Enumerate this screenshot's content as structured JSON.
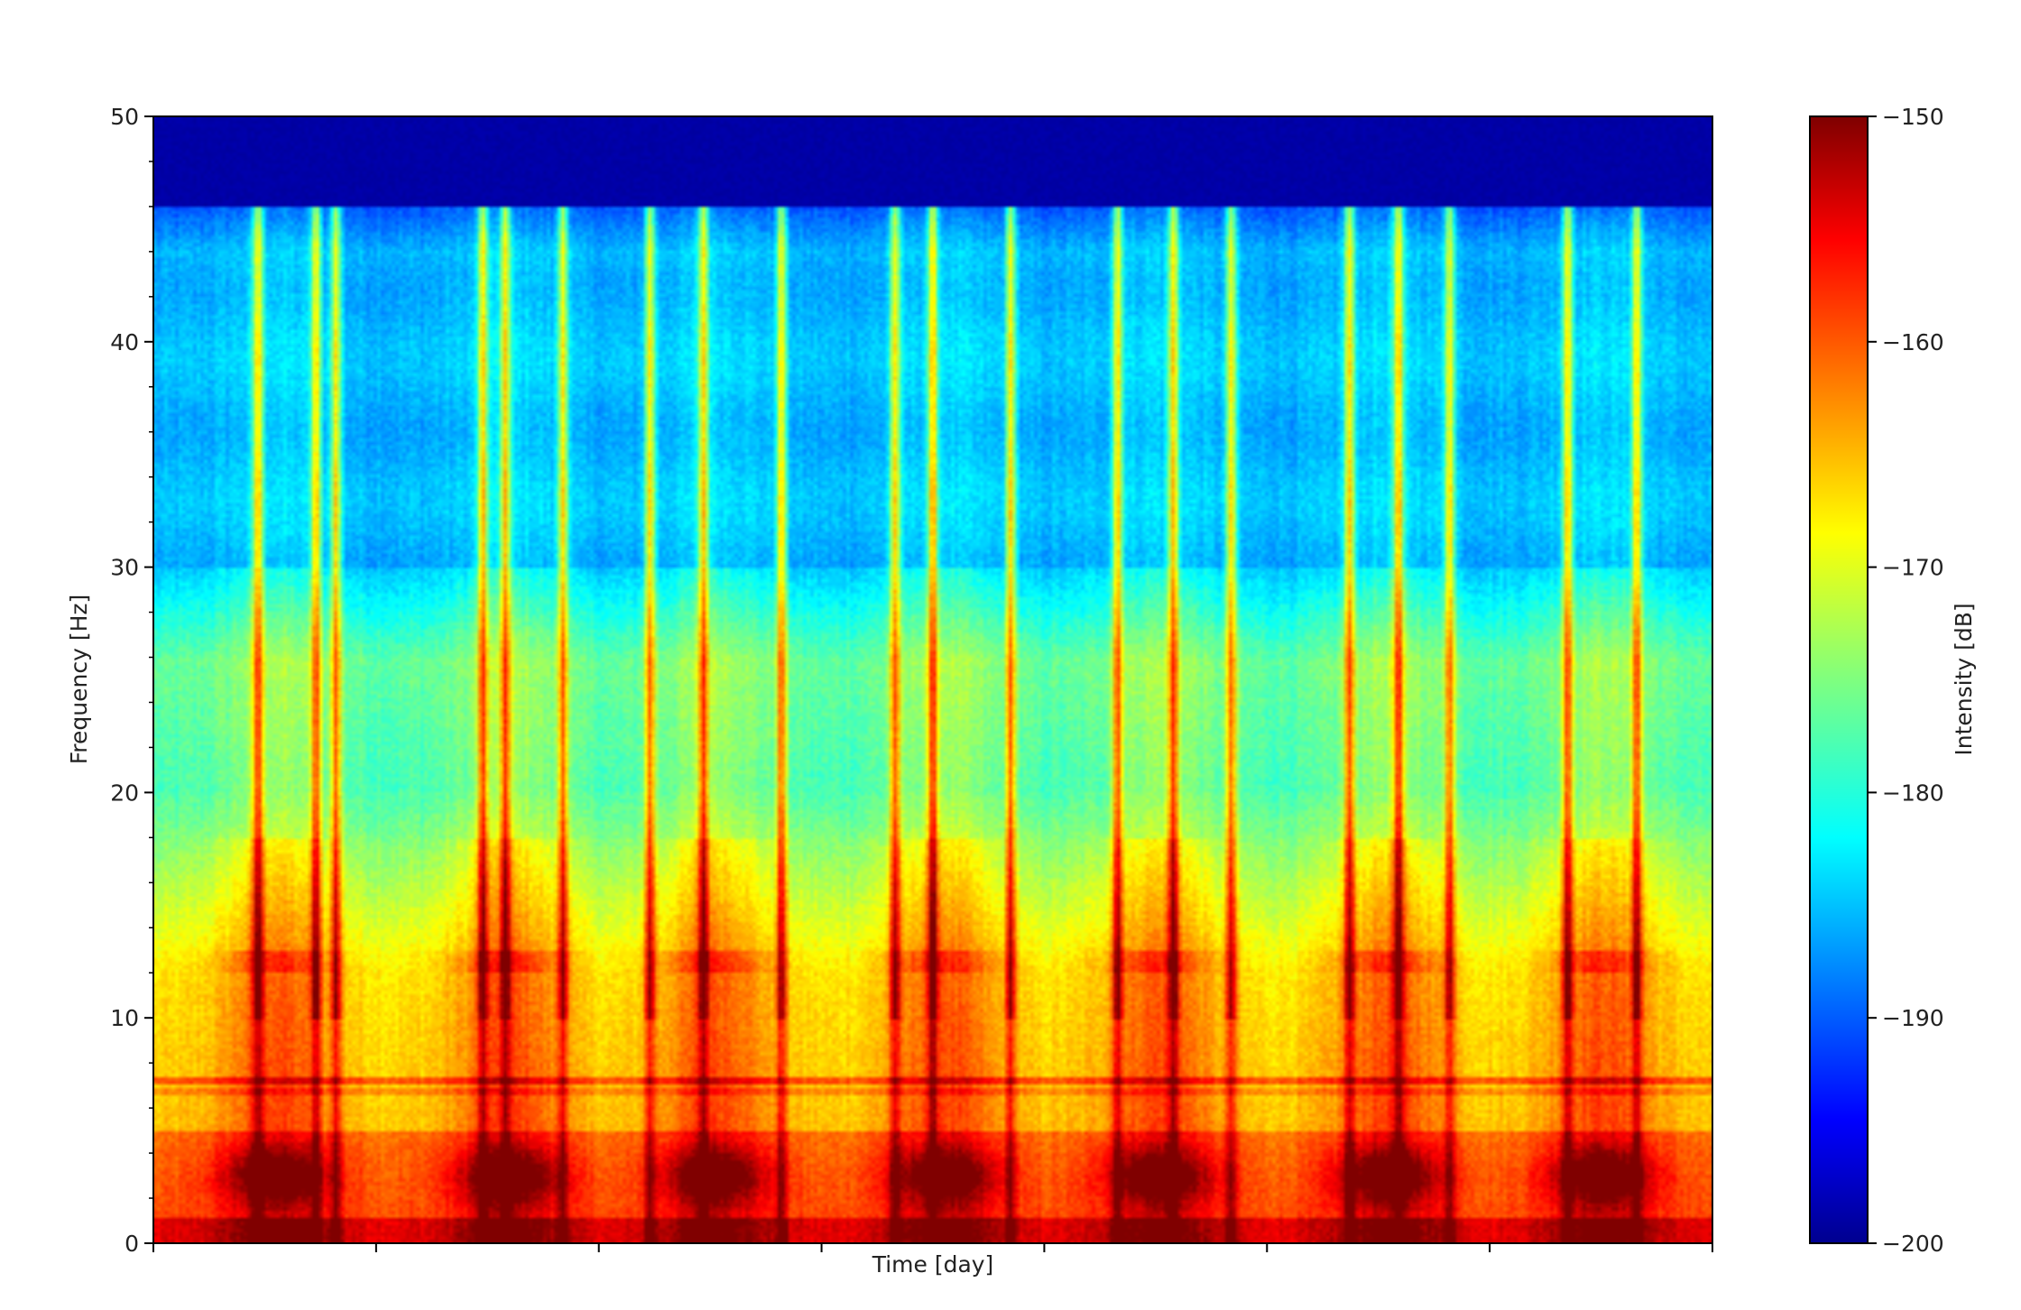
{
  "chart_data": {
    "type": "heatmap",
    "title": "",
    "xlabel": "Time [day]",
    "ylabel": "Frequency [Hz]",
    "colorbar_label": "Intensity [dB]",
    "colormap": "jet",
    "x_ticks": [
      "",
      "",
      "",
      "",
      "",
      "",
      "",
      ""
    ],
    "x_range": [
      0,
      7
    ],
    "ylim": [
      0,
      50
    ],
    "y_ticks": [
      0,
      10,
      20,
      30,
      40,
      50
    ],
    "y_tick_labels": [
      "0",
      "10",
      "20",
      "30",
      "40",
      "50"
    ],
    "clim": [
      -200,
      -150
    ],
    "colorbar_ticks": [
      -200,
      -190,
      -180,
      -170,
      -160,
      -150
    ],
    "colorbar_tick_labels": [
      "−200",
      "−190",
      "−180",
      "−170",
      "−160",
      "−150"
    ],
    "grid": false,
    "notes_in_data": {
      "cutoff_frequency_hz": 46,
      "active_band_times_day": [
        0.47,
        0.73,
        0.82,
        1.48,
        1.58,
        1.84,
        2.23,
        2.47,
        2.82,
        3.33,
        3.5,
        3.85,
        4.33,
        4.58,
        4.84,
        5.37,
        5.59,
        5.82,
        6.35,
        6.66
      ]
    }
  }
}
